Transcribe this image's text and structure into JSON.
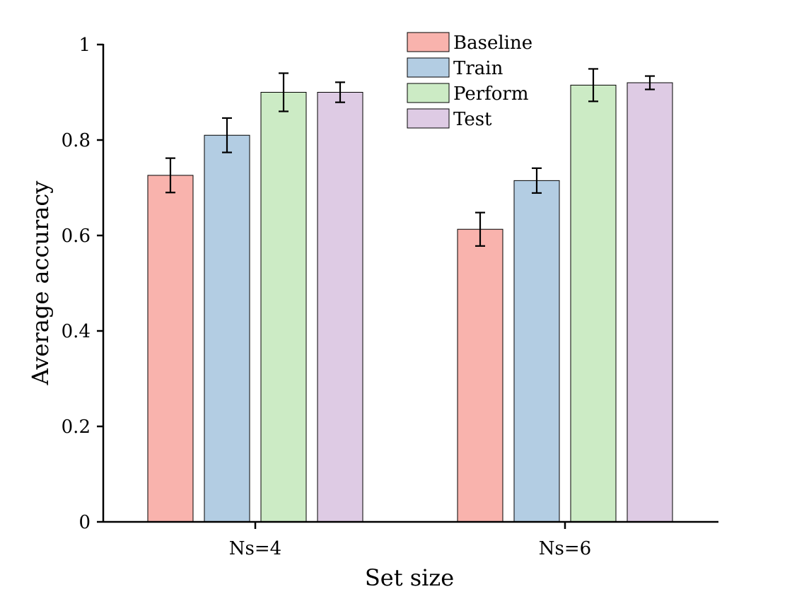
{
  "chart_data": {
    "type": "bar",
    "title": "",
    "xlabel": "Set size",
    "ylabel": "Average accuracy",
    "categories": [
      "Ns=4",
      "Ns=6"
    ],
    "ylim": [
      0,
      1
    ],
    "yticks": [
      0,
      0.2,
      0.4,
      0.6,
      0.8,
      1
    ],
    "ytick_labels": [
      "0",
      "0.2",
      "0.4",
      "0.6",
      "0.8",
      "1"
    ],
    "grid": false,
    "legend_position": "top-center",
    "series": [
      {
        "name": "Baseline",
        "color": "#f9b3ad",
        "values": [
          0.726,
          0.613
        ],
        "errors": [
          0.036,
          0.035
        ]
      },
      {
        "name": "Train",
        "color": "#b3cde3",
        "values": [
          0.81,
          0.715
        ],
        "errors": [
          0.036,
          0.026
        ]
      },
      {
        "name": "Perform",
        "color": "#ccebc5",
        "values": [
          0.9,
          0.915
        ],
        "errors": [
          0.04,
          0.034
        ]
      },
      {
        "name": "Test",
        "color": "#decbe4",
        "values": [
          0.9,
          0.92
        ],
        "errors": [
          0.021,
          0.014
        ]
      }
    ]
  }
}
